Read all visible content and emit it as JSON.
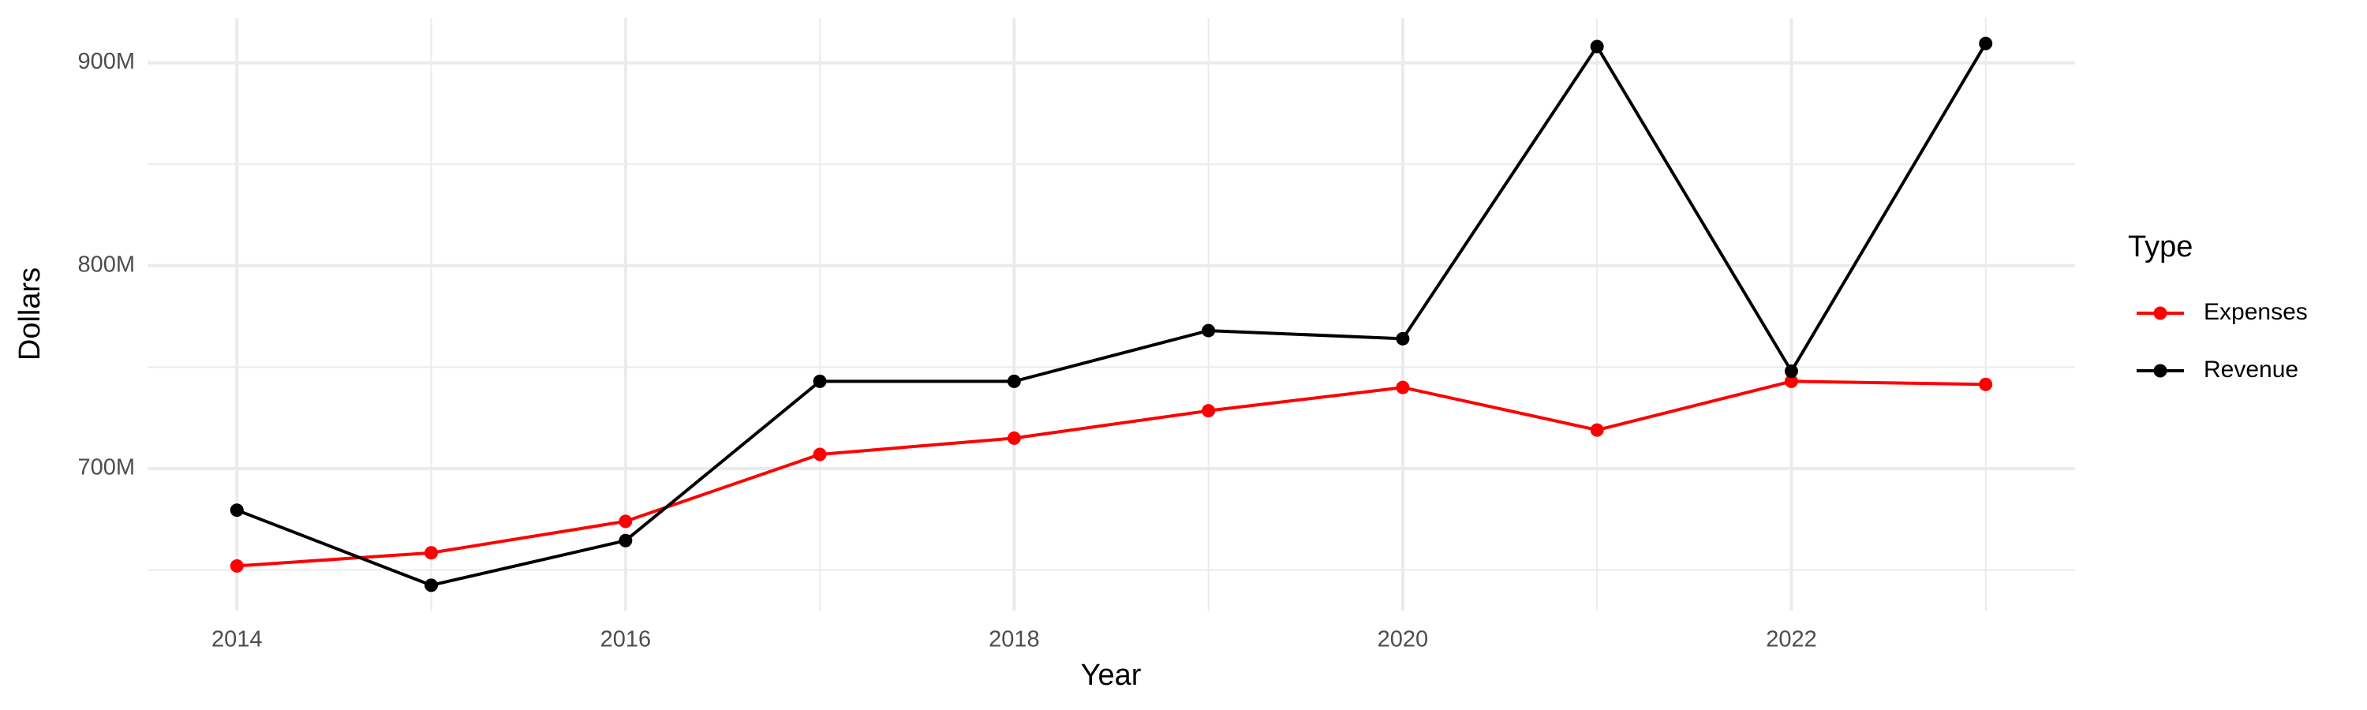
{
  "chart_data": {
    "type": "line",
    "x": [
      2014,
      2015,
      2016,
      2017,
      2018,
      2019,
      2020,
      2021,
      2022,
      2023
    ],
    "series": [
      {
        "name": "Expenses",
        "color": "#ff0000",
        "values": [
          652000000,
          658500000,
          674000000,
          707000000,
          715000000,
          728500000,
          740000000,
          719000000,
          743000000,
          741500000
        ]
      },
      {
        "name": "Revenue",
        "color": "#000000",
        "values": [
          679500000,
          642500000,
          664500000,
          743000000,
          743000000,
          768000000,
          764000000,
          908000000,
          748000000,
          909500000
        ]
      }
    ],
    "xlabel": "Year",
    "ylabel": "Dollars",
    "legend_title": "Type",
    "xlim": [
      2013.54,
      2023.46
    ],
    "xticks": [
      2014,
      2016,
      2018,
      2020,
      2022
    ],
    "xminor": [
      2015,
      2017,
      2019,
      2021,
      2023
    ],
    "ylim": [
      630000000,
      922000000
    ],
    "yticks": [
      {
        "value": 700000000,
        "label": "700M"
      },
      {
        "value": 800000000,
        "label": "800M"
      },
      {
        "value": 900000000,
        "label": "900M"
      }
    ],
    "yminor": [
      650000000,
      750000000,
      850000000
    ],
    "grid": true,
    "legend": "right"
  }
}
